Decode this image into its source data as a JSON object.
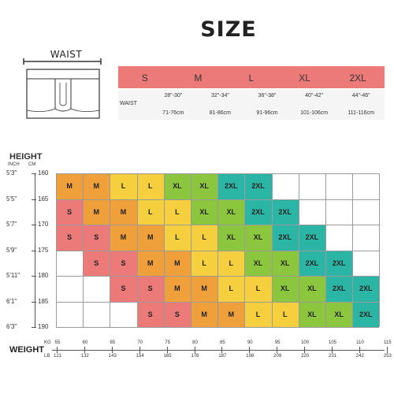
{
  "title": "SIZE",
  "waist_label": "WAIST",
  "size_header": [
    "S",
    "M",
    "L",
    "XL",
    "2XL"
  ],
  "waist_row_label": "WAIST",
  "waist_in": [
    "28\"-30\"",
    "32\"-34\"",
    "36\"-38\"",
    "40\"-42\"",
    "44\"-46\""
  ],
  "waist_cm": [
    "71-76cm",
    "81-86cm",
    "91-96cm",
    "101-106cm",
    "111-116cm"
  ],
  "height_label": "HEIGHT",
  "height_units": {
    "inch": "INCH",
    "cm": "CM"
  },
  "heights_in": [
    "5'3\"",
    "5'5\"",
    "5'7\"",
    "5'9\"",
    "5'11\"",
    "6'1\"",
    "6'3\""
  ],
  "heights_cm": [
    "160",
    "165",
    "170",
    "175",
    "180",
    "185",
    "190"
  ],
  "weight_label": "WEIGHT",
  "weight_units": {
    "kg": "KG",
    "lb": "LB"
  },
  "weights_kg": [
    "55",
    "60",
    "65",
    "70",
    "75",
    "80",
    "85",
    "90",
    "95",
    "100",
    "105",
    "110",
    "115"
  ],
  "weights_lb": [
    "121",
    "132",
    "143",
    "154",
    "165",
    "176",
    "187",
    "198",
    "209",
    "220",
    "231",
    "242",
    "253"
  ],
  "colors": {
    "S": "#ec7a78",
    "M": "#f0a03a",
    "L": "#f5cf3e",
    "XL": "#8cc63f",
    "2XL": "#2bb5a4",
    "empty": "#ffffff"
  },
  "grid": [
    [
      "M",
      "M",
      "L",
      "L",
      "XL",
      "XL",
      "2XL",
      "2XL",
      "",
      "",
      "",
      " ",
      ""
    ],
    [
      "S",
      "M",
      "M",
      "L",
      "L",
      "XL",
      "XL",
      "2XL",
      "2XL",
      "",
      "",
      ""
    ],
    [
      "S",
      "S",
      "M",
      "M",
      "L",
      "L",
      "XL",
      "XL",
      "2XL",
      "2XL",
      "",
      ""
    ],
    [
      "",
      "S",
      "S",
      "M",
      "M",
      "L",
      "L",
      "XL",
      "XL",
      "2XL",
      "2XL",
      ""
    ],
    [
      "",
      "",
      "S",
      "S",
      "M",
      "M",
      "L",
      "L",
      "XL",
      "XL",
      "2XL",
      "2XL"
    ],
    [
      "",
      "",
      "",
      "S",
      "S",
      "M",
      "M",
      "L",
      "L",
      "XL",
      "XL",
      "2XL"
    ]
  ]
}
